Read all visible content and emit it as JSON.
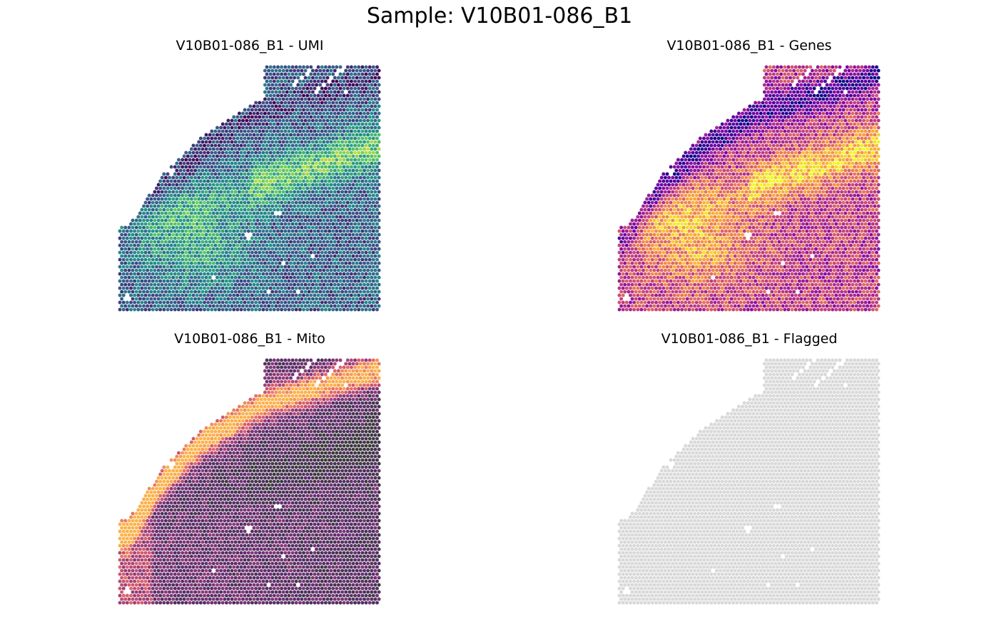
{
  "title": "Sample: V10B01-086_B1",
  "chart_data": [
    {
      "type": "scatter",
      "title": "V10B01-086_B1 - UMI",
      "palette": "viridis",
      "colors": {
        "low": "#440154",
        "high": "#fde725"
      }
    },
    {
      "type": "scatter",
      "title": "V10B01-086_B1 - Genes",
      "palette": "plasma",
      "colors": {
        "low": "#0d0887",
        "high": "#f0f921"
      }
    },
    {
      "type": "scatter",
      "title": "V10B01-086_B1 - Mito",
      "palette": "magma",
      "colors": {
        "low": "#3b3b3b",
        "high": "#fcb24c"
      }
    },
    {
      "type": "scatter",
      "title": "V10B01-086_B1 - Flagged",
      "palette": "flat",
      "colors": {
        "low": "#d9d9d9",
        "high": "#d9d9d9"
      }
    }
  ]
}
